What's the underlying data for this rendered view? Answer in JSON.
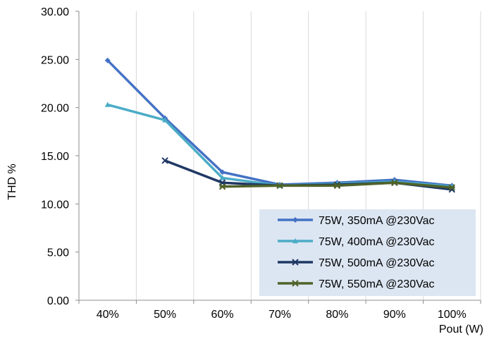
{
  "chart_data": {
    "type": "line",
    "categories": [
      "40%",
      "50%",
      "60%",
      "70%",
      "80%",
      "90%",
      "100%"
    ],
    "xlabel": "Pout (W)",
    "ylabel": "THD %",
    "ylim": [
      0,
      30
    ],
    "yticks": [
      "0.00",
      "5.00",
      "10.00",
      "15.00",
      "20.00",
      "25.00",
      "30.00"
    ],
    "grid": "vertical",
    "legend_position": "bottom-right",
    "series": [
      {
        "name": "75W, 350mA @230Vac",
        "color": "#4472c4",
        "marker": "diamond",
        "values": [
          24.9,
          18.9,
          13.3,
          12.0,
          12.2,
          12.5,
          11.9
        ]
      },
      {
        "name": "75W, 400mA @230Vac",
        "color": "#4bacc6",
        "marker": "triangle",
        "values": [
          20.3,
          18.7,
          12.7,
          11.9,
          12.1,
          12.3,
          11.8
        ]
      },
      {
        "name": "75W, 500mA @230Vac",
        "color": "#1f3864",
        "marker": "x",
        "values": [
          null,
          14.5,
          12.2,
          11.9,
          12.0,
          12.2,
          11.5
        ]
      },
      {
        "name": "75W, 550mA @230Vac",
        "color": "#4f6228",
        "marker": "star",
        "values": [
          null,
          null,
          11.8,
          11.9,
          11.9,
          12.2,
          11.7
        ]
      }
    ]
  }
}
